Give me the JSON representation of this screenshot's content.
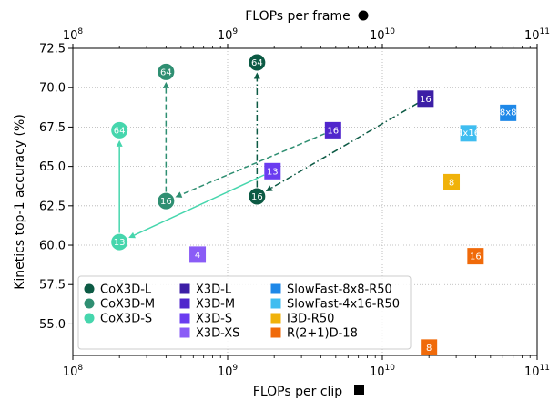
{
  "chart_data": {
    "type": "scatter",
    "xlabel_bottom": "FLOPs per clip",
    "xlabel_top": "FLOPs per frame",
    "ylabel": "Kinetics top-1 accuracy (%)",
    "x_scale": "log",
    "xlim": [
      100000000,
      100000000000
    ],
    "ylim": [
      53.0,
      72.5
    ],
    "x_ticks": [
      {
        "value": 100000000,
        "base": "10",
        "exp": "8"
      },
      {
        "value": 1000000000,
        "base": "10",
        "exp": "9"
      },
      {
        "value": 10000000000,
        "base": "10",
        "exp": "10"
      },
      {
        "value": 100000000000,
        "base": "10",
        "exp": "11"
      }
    ],
    "y_ticks": [
      "55.0",
      "57.5",
      "60.0",
      "62.5",
      "65.0",
      "67.5",
      "70.0",
      "72.5"
    ],
    "grid": true,
    "legend_placement": "lower-left",
    "series": [
      {
        "name": "CoX3D-L",
        "marker": "circle",
        "color": "#0c5a44",
        "points": [
          {
            "x": 1550000000,
            "y": 63.1,
            "label": "16"
          },
          {
            "x": 1550000000,
            "y": 71.6,
            "label": "64"
          }
        ]
      },
      {
        "name": "CoX3D-M",
        "marker": "circle",
        "color": "#2f8f72",
        "points": [
          {
            "x": 400000000,
            "y": 62.8,
            "label": "16"
          },
          {
            "x": 400000000,
            "y": 71.0,
            "label": "64"
          }
        ]
      },
      {
        "name": "CoX3D-S",
        "marker": "circle",
        "color": "#46d6ad",
        "points": [
          {
            "x": 200000000,
            "y": 60.2,
            "label": "13"
          },
          {
            "x": 200000000,
            "y": 67.3,
            "label": "64"
          }
        ]
      },
      {
        "name": "X3D-L",
        "marker": "square",
        "color": "#3c1ea6",
        "points": [
          {
            "x": 19000000000,
            "y": 69.3,
            "label": "16"
          }
        ]
      },
      {
        "name": "X3D-M",
        "marker": "square",
        "color": "#5026cc",
        "points": [
          {
            "x": 4800000000,
            "y": 67.3,
            "label": "16"
          }
        ]
      },
      {
        "name": "X3D-S",
        "marker": "square",
        "color": "#6a3cf0",
        "points": [
          {
            "x": 1950000000,
            "y": 64.7,
            "label": "13"
          }
        ]
      },
      {
        "name": "X3D-XS",
        "marker": "square",
        "color": "#8a5cf6",
        "points": [
          {
            "x": 640000000,
            "y": 59.4,
            "label": "4"
          }
        ]
      },
      {
        "name": "SlowFast-8x8-R50",
        "marker": "square",
        "color": "#1e88e8",
        "points": [
          {
            "x": 65000000000,
            "y": 68.4,
            "label": "8x8"
          }
        ]
      },
      {
        "name": "SlowFast-4x16-R50",
        "marker": "square",
        "color": "#3fbdf0",
        "points": [
          {
            "x": 36000000000,
            "y": 67.1,
            "label": "4x16"
          }
        ]
      },
      {
        "name": "I3D-R50",
        "marker": "square",
        "color": "#f0b20a",
        "points": [
          {
            "x": 28000000000,
            "y": 64.0,
            "label": "8"
          }
        ]
      },
      {
        "name": "R(2+1)D-18",
        "marker": "square",
        "color": "#f06a0a",
        "points": [
          {
            "x": 40000000000,
            "y": 59.3,
            "label": "16"
          },
          {
            "x": 20000000000,
            "y": 53.5,
            "label": "8"
          }
        ]
      }
    ],
    "arrows": [
      {
        "from": [
          1550000000,
          63.1
        ],
        "to": [
          1550000000,
          71.6
        ],
        "color": "#0c5a44",
        "style": "dashdot"
      },
      {
        "from": [
          19000000000,
          69.3
        ],
        "to": [
          1550000000,
          63.1
        ],
        "color": "#0c5a44",
        "style": "dashdot"
      },
      {
        "from": [
          400000000,
          62.8
        ],
        "to": [
          400000000,
          71.0
        ],
        "color": "#2f8f72",
        "style": "dashed"
      },
      {
        "from": [
          4800000000,
          67.3
        ],
        "to": [
          400000000,
          62.8
        ],
        "color": "#2f8f72",
        "style": "dashed"
      },
      {
        "from": [
          200000000,
          60.2
        ],
        "to": [
          200000000,
          67.3
        ],
        "color": "#46d6ad",
        "style": "solid"
      },
      {
        "from": [
          1950000000,
          64.7
        ],
        "to": [
          200000000,
          60.2
        ],
        "color": "#46d6ad",
        "style": "solid"
      }
    ]
  }
}
